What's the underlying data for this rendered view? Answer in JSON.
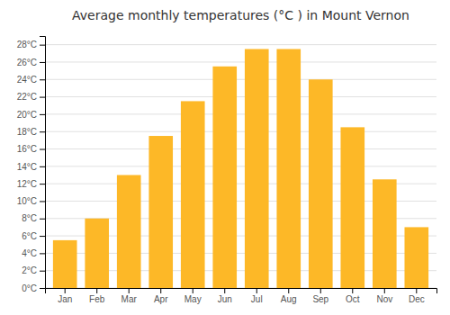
{
  "chart_data": {
    "type": "bar",
    "title": "Average monthly temperatures (°C ) in Mount Vernon",
    "categories": [
      "Jan",
      "Feb",
      "Mar",
      "Apr",
      "May",
      "Jun",
      "Jul",
      "Aug",
      "Sep",
      "Oct",
      "Nov",
      "Dec"
    ],
    "values": [
      5.5,
      8.0,
      13.0,
      17.5,
      21.5,
      25.5,
      27.5,
      27.5,
      24.0,
      18.5,
      12.5,
      7.0
    ],
    "color": "#FDB827",
    "ylim": [
      0,
      29
    ],
    "yticks": [
      {
        "value": 0,
        "label": "0°C"
      },
      {
        "value": 2,
        "label": "2°C"
      },
      {
        "value": 4,
        "label": "4°C"
      },
      {
        "value": 6,
        "label": "6°C"
      },
      {
        "value": 8,
        "label": "8°C"
      },
      {
        "value": 10,
        "label": "10°C"
      },
      {
        "value": 12,
        "label": "12°C"
      },
      {
        "value": 14,
        "label": "14°C"
      },
      {
        "value": 16,
        "label": "16°C"
      },
      {
        "value": 18,
        "label": "18°C"
      },
      {
        "value": 20,
        "label": "20°C"
      },
      {
        "value": 22,
        "label": "22°C"
      },
      {
        "value": 24,
        "label": "24°C"
      },
      {
        "value": 26,
        "label": "26°C"
      },
      {
        "value": 28,
        "label": "28°C"
      }
    ],
    "grid": true
  }
}
